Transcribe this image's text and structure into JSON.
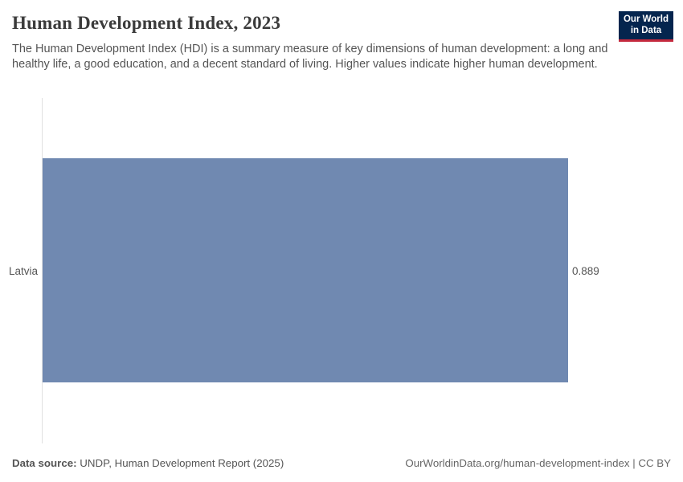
{
  "header": {
    "title": "Human Development Index, 2023",
    "subtitle": "The Human Development Index (HDI) is a summary measure of key dimensions of human development: a long and healthy life, a good education, and a decent standard of living. Higher values indicate higher human development."
  },
  "logo": {
    "line1": "Our World",
    "line2": "in Data"
  },
  "chart_data": {
    "type": "bar",
    "orientation": "horizontal",
    "title": "Human Development Index, 2023",
    "categories": [
      "Latvia"
    ],
    "values": [
      0.889
    ],
    "value_labels": [
      "0.889"
    ],
    "xlim": [
      0,
      0.889
    ],
    "grid": false,
    "legend": "none",
    "bar_color": "#7089b1"
  },
  "colors": {
    "bar": "#7089b1",
    "logo_background": "#04254e",
    "logo_underline": "#c4293d",
    "axis_line": "#e0e0e0",
    "title_text": "#3b3b3b",
    "body_text": "#555555"
  },
  "footer": {
    "data_source_label": "Data source:",
    "data_source_text": " UNDP, Human Development Report (2025)",
    "right_text": "OurWorldinData.org/human-development-index | CC BY"
  }
}
